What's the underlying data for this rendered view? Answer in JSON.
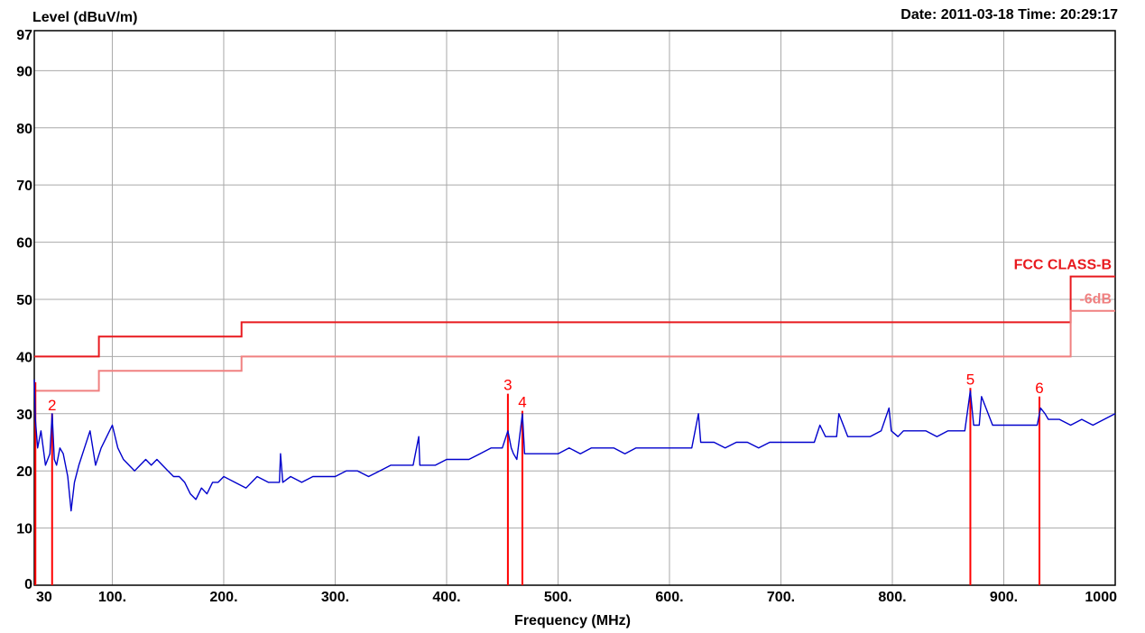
{
  "chart_data": {
    "type": "line",
    "title": "",
    "datetime": "Date: 2011-03-18  Time: 20:29:17",
    "ylabel": "Level (dBuV/m)",
    "xlabel": "Frequency (MHz)",
    "xlim": [
      30,
      1000
    ],
    "ylim": [
      0,
      97
    ],
    "grid": true,
    "x_ticks": [
      {
        "v": 30,
        "label": "30"
      },
      {
        "v": 100,
        "label": "100."
      },
      {
        "v": 200,
        "label": "200."
      },
      {
        "v": 300,
        "label": "300."
      },
      {
        "v": 400,
        "label": "400."
      },
      {
        "v": 500,
        "label": "500."
      },
      {
        "v": 600,
        "label": "600."
      },
      {
        "v": 700,
        "label": "700."
      },
      {
        "v": 800,
        "label": "800."
      },
      {
        "v": 900,
        "label": "900."
      },
      {
        "v": 1000,
        "label": "1000"
      }
    ],
    "x_grid": [
      100,
      200,
      300,
      400,
      500,
      600,
      700,
      800,
      900
    ],
    "y_ticks": [
      0,
      10,
      20,
      30,
      40,
      50,
      60,
      70,
      80,
      90,
      97
    ],
    "y_grid": [
      10,
      20,
      30,
      40,
      50,
      60,
      70,
      80,
      90
    ],
    "colors": {
      "trace": "#0000cc",
      "limit": "#e8191e",
      "margin": "#f08080",
      "marker": "#ff0000",
      "grid": "#a9a9a9"
    },
    "limits": [
      {
        "name": "FCC CLASS-B",
        "points": [
          [
            30,
            40
          ],
          [
            88,
            40
          ],
          [
            88,
            43.5
          ],
          [
            216,
            43.5
          ],
          [
            216,
            46
          ],
          [
            960,
            46
          ],
          [
            960,
            54
          ],
          [
            1000,
            54
          ]
        ]
      },
      {
        "name": "-6dB",
        "points": [
          [
            30,
            34
          ],
          [
            88,
            34
          ],
          [
            88,
            37.5
          ],
          [
            216,
            37.5
          ],
          [
            216,
            40
          ],
          [
            960,
            40
          ],
          [
            960,
            48
          ],
          [
            1000,
            48
          ]
        ]
      }
    ],
    "markers": [
      {
        "label": "",
        "freq": 31,
        "level": 35.5
      },
      {
        "label": "2",
        "freq": 46,
        "level": 30
      },
      {
        "label": "3",
        "freq": 455,
        "level": 33.5
      },
      {
        "label": "4",
        "freq": 468,
        "level": 30.5
      },
      {
        "label": "5",
        "freq": 870,
        "level": 34.5
      },
      {
        "label": "6",
        "freq": 932,
        "level": 33
      }
    ],
    "series": [
      {
        "x": [
          30,
          31,
          33,
          36,
          40,
          44,
          46,
          48,
          50,
          53,
          56,
          60,
          63,
          66,
          70,
          75,
          80,
          85,
          90,
          95,
          100,
          105,
          110,
          115,
          120,
          125,
          130,
          135,
          140,
          145,
          150,
          155,
          160,
          165,
          170,
          175,
          180,
          185,
          190,
          195,
          200,
          210,
          220,
          230,
          240,
          250,
          251,
          253,
          260,
          270,
          280,
          290,
          300,
          310,
          320,
          330,
          340,
          350,
          360,
          370,
          375,
          376,
          380,
          390,
          400,
          410,
          420,
          430,
          440,
          450,
          455,
          458,
          460,
          463,
          468,
          470,
          480,
          490,
          500,
          510,
          520,
          530,
          540,
          550,
          560,
          570,
          580,
          590,
          600,
          610,
          620,
          626,
          628,
          635,
          640,
          650,
          660,
          670,
          680,
          690,
          700,
          710,
          720,
          730,
          735,
          740,
          750,
          752,
          760,
          770,
          780,
          790,
          797,
          799,
          805,
          810,
          820,
          830,
          840,
          850,
          860,
          865,
          870,
          873,
          878,
          880,
          890,
          900,
          910,
          920,
          930,
          933,
          937,
          940,
          950,
          960,
          970,
          980,
          990,
          1000
        ],
        "y": [
          36,
          29,
          24,
          27,
          21,
          23,
          30,
          22,
          21,
          24,
          23,
          19,
          13,
          18,
          21,
          24,
          27,
          21,
          24,
          26,
          28,
          24,
          22,
          21,
          20,
          21,
          22,
          21,
          22,
          21,
          20,
          19,
          19,
          18,
          16,
          15,
          17,
          16,
          18,
          18,
          19,
          18,
          17,
          19,
          18,
          18,
          23,
          18,
          19,
          18,
          19,
          19,
          19,
          20,
          20,
          19,
          20,
          21,
          21,
          21,
          26,
          21,
          21,
          21,
          22,
          22,
          22,
          23,
          24,
          24,
          27,
          24,
          23,
          22,
          30,
          23,
          23,
          23,
          23,
          24,
          23,
          24,
          24,
          24,
          23,
          24,
          24,
          24,
          24,
          24,
          24,
          30,
          25,
          25,
          25,
          24,
          25,
          25,
          24,
          25,
          25,
          25,
          25,
          25,
          28,
          26,
          26,
          30,
          26,
          26,
          26,
          27,
          31,
          27,
          26,
          27,
          27,
          27,
          26,
          27,
          27,
          27,
          34,
          28,
          28,
          33,
          28,
          28,
          28,
          28,
          28,
          31,
          30,
          29,
          29,
          28,
          29,
          28,
          29,
          30
        ]
      }
    ]
  }
}
